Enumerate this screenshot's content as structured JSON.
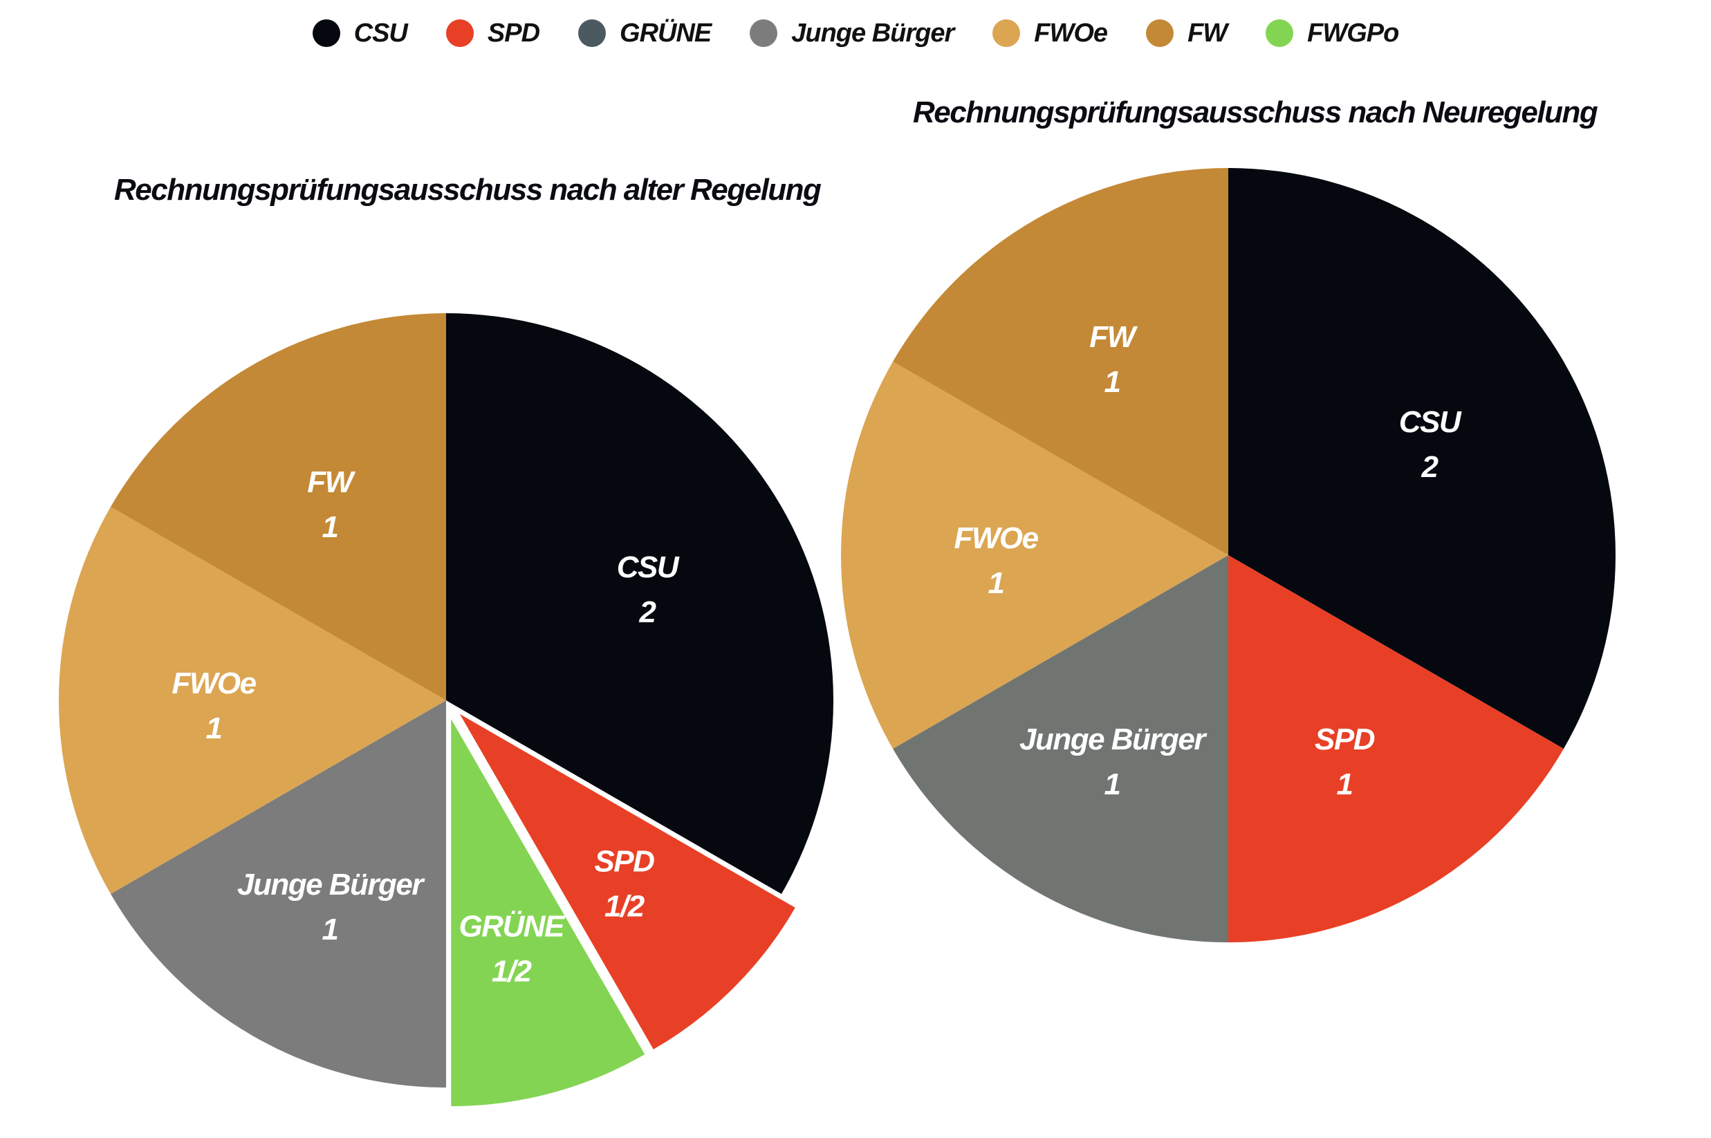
{
  "legend": [
    {
      "label": "CSU",
      "color": "#05090f"
    },
    {
      "label": "SPD",
      "color": "#e84026"
    },
    {
      "label": "GRÜNE",
      "color": "#4b5a61"
    },
    {
      "label": "Junge Bürger",
      "color": "#7b7c7b"
    },
    {
      "label": "FWOe",
      "color": "#dba552"
    },
    {
      "label": "FW",
      "color": "#c48936"
    },
    {
      "label": "FWGPo",
      "color": "#84d454"
    }
  ],
  "chart_data": [
    {
      "type": "pie",
      "title": "Rechnungsprüfungsausschuss nach alter Regelung",
      "slices": [
        {
          "name": "CSU",
          "label": "2",
          "value": 2,
          "color": "#05090f",
          "exploded": false
        },
        {
          "name": "SPD",
          "label": "1/2",
          "value": 0.5,
          "color": "#e84026",
          "exploded": true
        },
        {
          "name": "GRÜNE",
          "label": "1/2",
          "value": 0.5,
          "color": "#84d454",
          "exploded": true
        },
        {
          "name": "Junge Bürger",
          "label": "1",
          "value": 1,
          "color": "#7b7c7b",
          "exploded": false
        },
        {
          "name": "FWOe",
          "label": "1",
          "value": 1,
          "color": "#dba552",
          "exploded": false
        },
        {
          "name": "FW",
          "label": "1",
          "value": 1,
          "color": "#c48936",
          "exploded": false
        }
      ]
    },
    {
      "type": "pie",
      "title": "Rechnungsprüfungsausschuss nach Neuregelung",
      "slices": [
        {
          "name": "CSU",
          "label": "2",
          "value": 2,
          "color": "#05090f",
          "exploded": false
        },
        {
          "name": "SPD",
          "label": "1",
          "value": 1,
          "color": "#e84026",
          "exploded": false
        },
        {
          "name": "Junge Bürger",
          "label": "1",
          "value": 1,
          "color": "#717572",
          "exploded": false
        },
        {
          "name": "FWOe",
          "label": "1",
          "value": 1,
          "color": "#dba552",
          "exploded": false
        },
        {
          "name": "FW",
          "label": "1",
          "value": 1,
          "color": "#c48936",
          "exploded": false
        }
      ]
    }
  ]
}
